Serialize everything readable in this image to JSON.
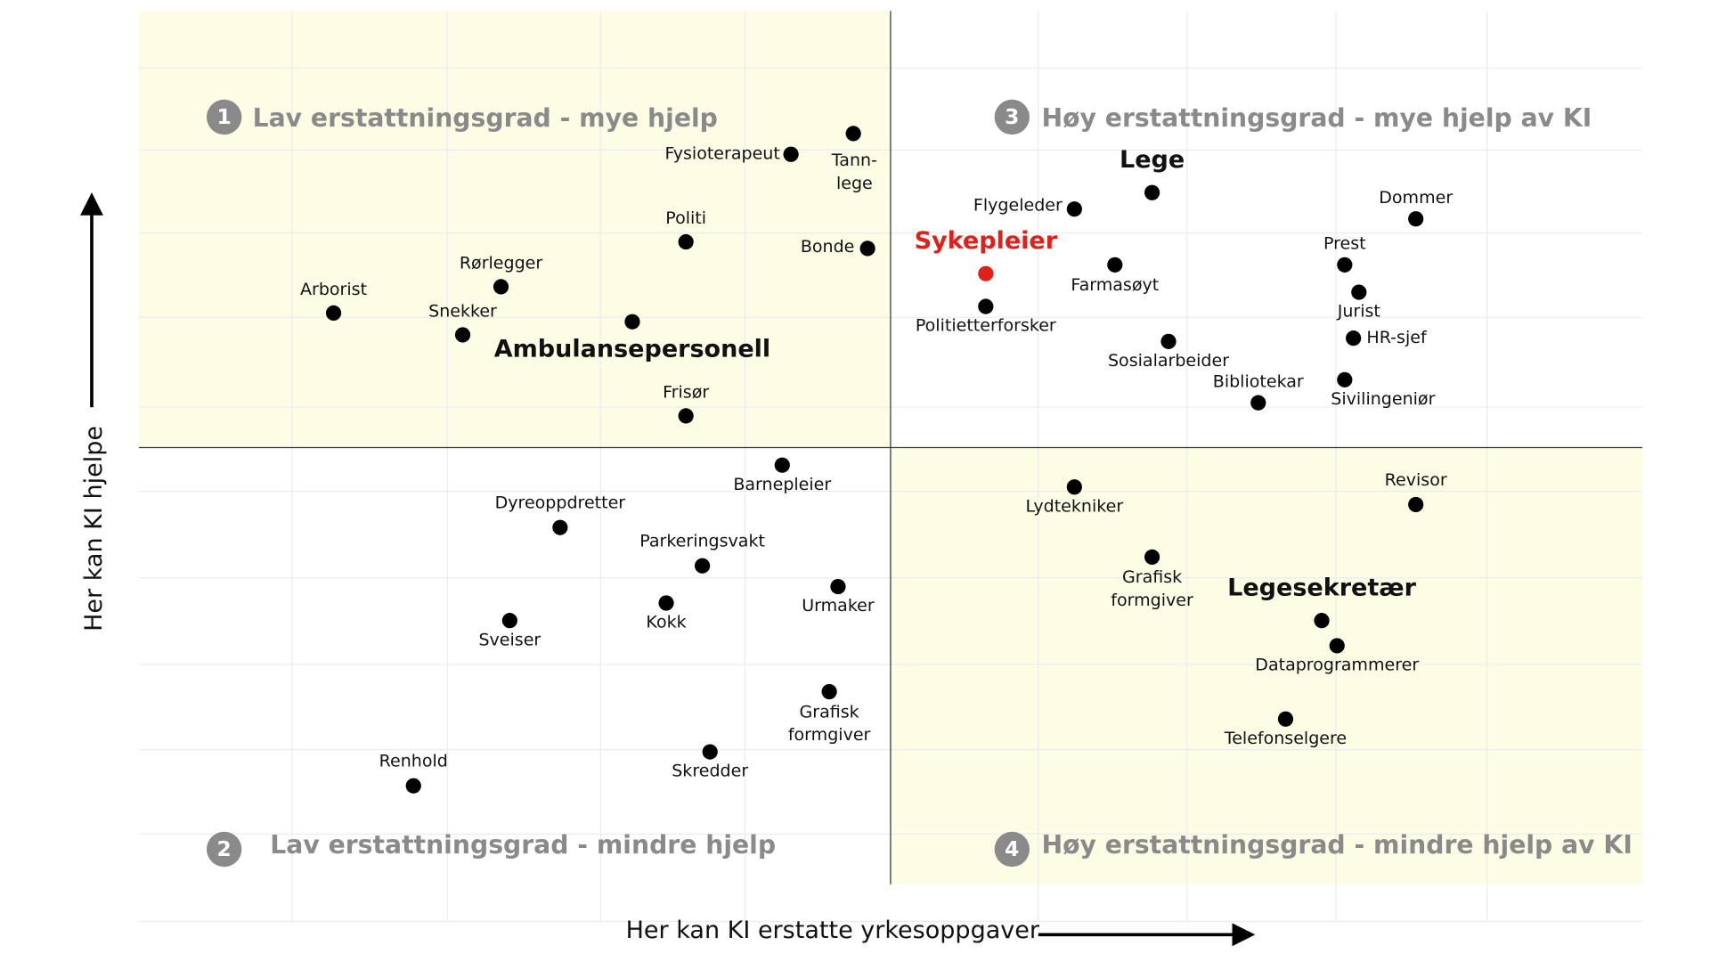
{
  "quadrants": [
    {
      "number": "1",
      "title": "Lav erstattningsgrad - mye hjelp"
    },
    {
      "number": "2",
      "title": "Lav erstattningsgrad - mindre hjelp"
    },
    {
      "number": "3",
      "title": "Høy erstattningsgrad - mye hjelp av KI"
    },
    {
      "number": "4",
      "title": "Høy erstattningsgrad - mindre hjelp av KI"
    }
  ],
  "x_axis_label": "Her kan KI erstatte yrkesoppgaver",
  "y_axis_label": "Her kan KI hjelpe",
  "nodes": [
    {
      "label": [
        "Fysioterapeut"
      ]
    },
    {
      "label": [
        "Tann-",
        "lege"
      ]
    },
    {
      "label": [
        "Politi"
      ]
    },
    {
      "label": [
        "Bonde"
      ]
    },
    {
      "label": [
        "Rørlegger"
      ]
    },
    {
      "label": [
        "Arborist"
      ]
    },
    {
      "label": [
        "Snekker"
      ]
    },
    {
      "label": [
        "Ambulansepersonell"
      ]
    },
    {
      "label": [
        "Frisør"
      ]
    },
    {
      "label": [
        "Lege"
      ]
    },
    {
      "label": [
        "Flygeleder"
      ]
    },
    {
      "label": [
        "Dommer"
      ]
    },
    {
      "label": [
        "Sykepleier"
      ]
    },
    {
      "label": [
        "Farmasøyt"
      ]
    },
    {
      "label": [
        "Prest"
      ]
    },
    {
      "label": [
        "Jurist"
      ]
    },
    {
      "label": [
        "Politietterforsker"
      ]
    },
    {
      "label": [
        "HR-sjef"
      ]
    },
    {
      "label": [
        "Sosialarbeider"
      ]
    },
    {
      "label": [
        "Bibliotekar"
      ]
    },
    {
      "label": [
        "Sivilingeniør"
      ]
    },
    {
      "label": [
        "Barnepleier"
      ]
    },
    {
      "label": [
        "Dyreoppdretter"
      ]
    },
    {
      "label": [
        "Parkeringsvakt"
      ]
    },
    {
      "label": [
        "Urmaker"
      ]
    },
    {
      "label": [
        "Kokk"
      ]
    },
    {
      "label": [
        "Sveiser"
      ]
    },
    {
      "label": [
        "Grafisk",
        "formgiver"
      ]
    },
    {
      "label": [
        "Skredder"
      ]
    },
    {
      "label": [
        "Renhold"
      ]
    },
    {
      "label": [
        "Lydtekniker"
      ]
    },
    {
      "label": [
        "Revisor"
      ]
    },
    {
      "label": [
        "Grafisk",
        "formgiver"
      ]
    },
    {
      "label": [
        "Legesekretær"
      ]
    },
    {
      "label": [
        "Dataprogrammerer"
      ]
    },
    {
      "label": [
        "Telefonselgere"
      ]
    }
  ]
}
